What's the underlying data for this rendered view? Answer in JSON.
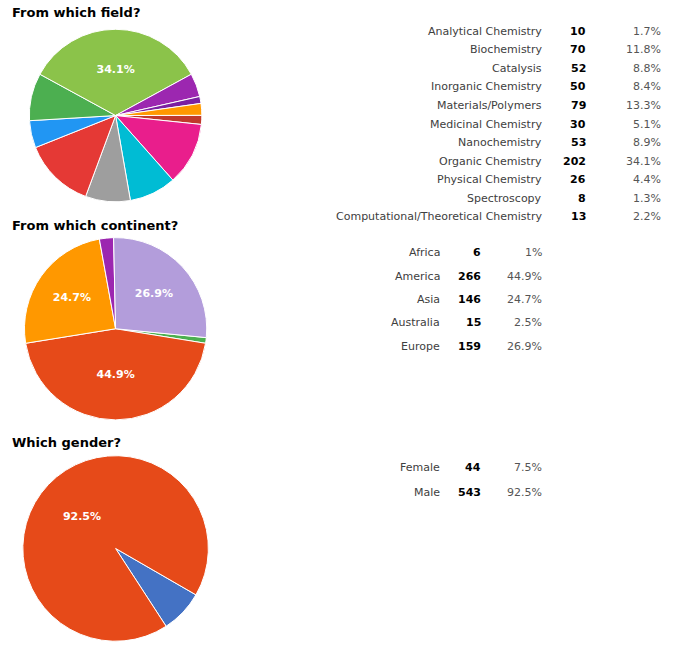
{
  "chart_data": [
    {
      "type": "pie",
      "title": "From which field?",
      "categories": [
        "Analytical Chemistry",
        "Biochemistry",
        "Catalysis",
        "Inorganic Chemistry",
        "Materials/Polymers",
        "Medicinal Chemistry",
        "Nanochemistry",
        "Organic Chemistry",
        "Physical Chemistry",
        "Spectroscopy",
        "Computational/Theoretical Chemistry"
      ],
      "values": [
        1.7,
        11.8,
        8.8,
        8.4,
        13.3,
        5.1,
        8.9,
        34.1,
        4.4,
        1.3,
        2.2
      ],
      "value_labels": [
        "1.7%",
        "11.8%",
        "8.8%",
        "8.4%",
        "13.3%",
        "5.1%",
        "8.9%",
        "34.1%",
        "4.4%",
        "1.3%",
        "2.2%"
      ],
      "slice_labels": [
        null,
        null,
        null,
        null,
        null,
        null,
        null,
        "34.1%",
        null,
        null,
        null
      ],
      "counts": [
        10,
        70,
        52,
        50,
        79,
        30,
        53,
        202,
        26,
        8,
        13
      ],
      "colors": [
        "#c0392b",
        "#e91e8c",
        "#00bcd4",
        "#9e9e9e",
        "#e53935",
        "#2196f3",
        "#4caf50",
        "#8bc34a",
        "#9c27b0",
        "#7b1fa2",
        "#ff9800"
      ]
    },
    {
      "type": "pie",
      "title": "From which continent?",
      "categories": [
        "Africa",
        "America",
        "Asia",
        "Australia",
        "Europe"
      ],
      "values": [
        1,
        44.9,
        24.7,
        2.5,
        26.9
      ],
      "value_labels": [
        "1%",
        "44.9%",
        "24.7%",
        "2.5%",
        "26.9%"
      ],
      "slice_labels": [
        null,
        "44.9%",
        "24.7%",
        null,
        "26.9%"
      ],
      "counts": [
        6,
        266,
        146,
        15,
        159
      ],
      "colors": [
        "#4caf50",
        "#e64a19",
        "#ff9800",
        "#9c27b0",
        "#b39ddb"
      ]
    },
    {
      "type": "pie",
      "title": "Which gender?",
      "categories": [
        "Female",
        "Male"
      ],
      "values": [
        7.5,
        92.5
      ],
      "value_labels": [
        "7.5%",
        "92.5%"
      ],
      "slice_labels": [
        null,
        "92.5%"
      ],
      "counts": [
        44,
        543
      ],
      "colors": [
        "#4472c4",
        "#e64a19"
      ]
    }
  ]
}
